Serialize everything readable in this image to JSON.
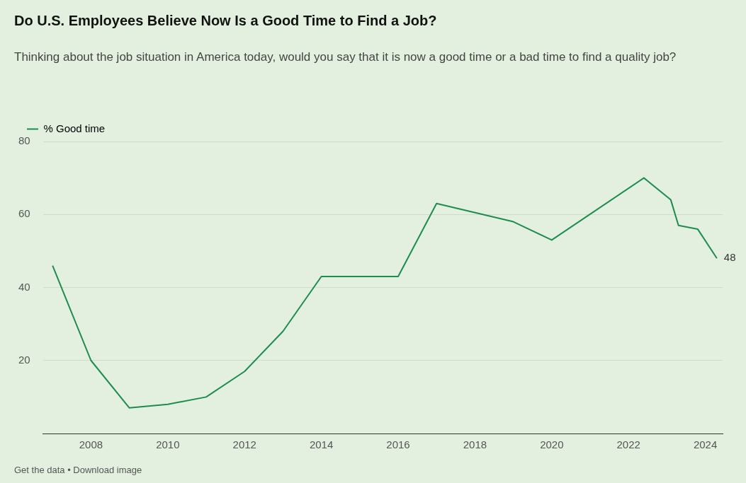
{
  "chart_data": {
    "type": "line",
    "title": "Do U.S. Employees Believe Now Is a Good Time to Find a Job?",
    "subtitle": "Thinking about the job situation in America today, would you say that it is now a good time or a bad time to find a quality job?",
    "x": [
      2007,
      2008,
      2009,
      2010,
      2011,
      2012,
      2013,
      2014,
      2016,
      2017,
      2019,
      2020,
      2022.4,
      2023.1,
      2023.3,
      2023.8,
      2024.3
    ],
    "series": [
      {
        "name": "% Good time",
        "color": "#1e8c4e",
        "values": [
          46,
          20,
          7,
          8,
          10,
          17,
          28,
          43,
          43,
          63,
          58,
          53,
          70,
          64,
          57,
          56,
          48
        ],
        "value_labels": [
          null,
          null,
          null,
          null,
          null,
          null,
          null,
          null,
          null,
          null,
          null,
          null,
          null,
          null,
          null,
          null,
          "48"
        ]
      }
    ],
    "xlim": [
      2006.75,
      2024.45
    ],
    "xticks": [
      2008,
      2010,
      2012,
      2014,
      2016,
      2018,
      2020,
      2022,
      2024
    ],
    "ylim": [
      0,
      80
    ],
    "yticks": [
      20,
      40,
      60,
      80
    ],
    "grid": "y",
    "legend": "top left",
    "marker": "none",
    "line_style": "solid",
    "annotations": [
      "Get the data • Download image"
    ]
  }
}
